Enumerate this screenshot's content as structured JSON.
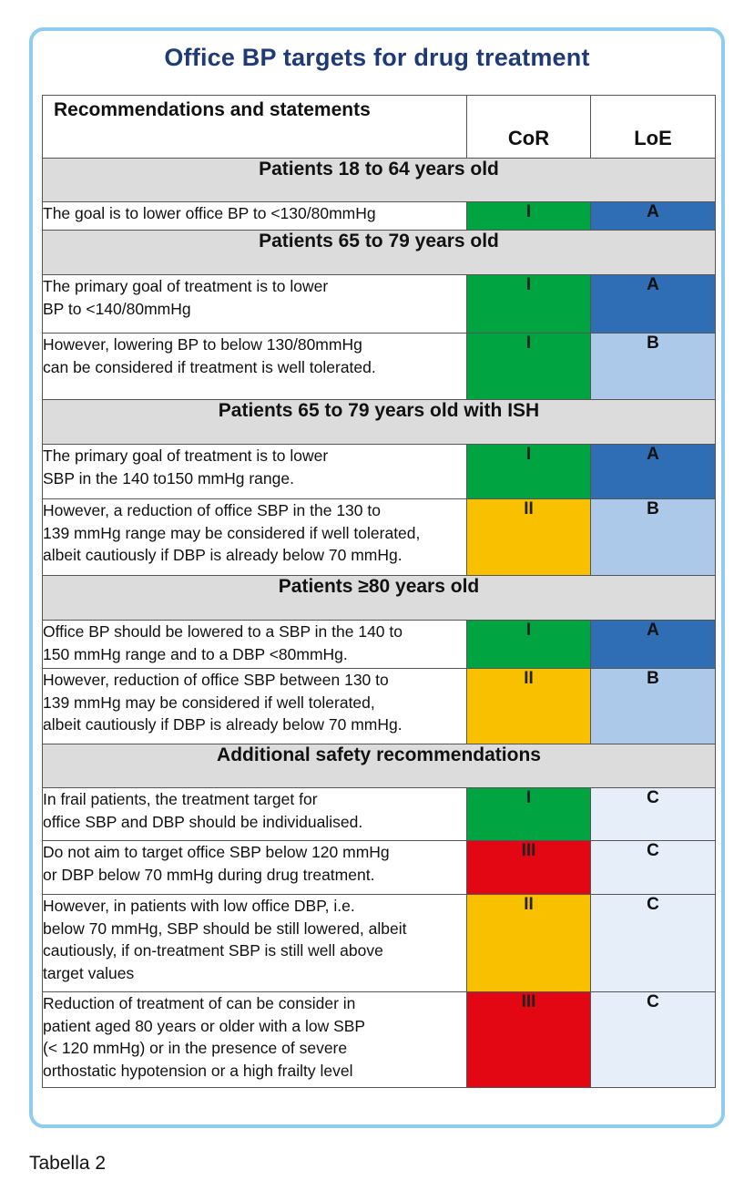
{
  "title": "Office BP targets for drug treatment",
  "header": {
    "statements": "Recommendations and statements",
    "cor": "CoR",
    "loe": "LoE"
  },
  "colors": {
    "cor_I": "#00a440",
    "cor_II": "#f9c000",
    "cor_III": "#e30613",
    "loe_A": "#2f6db5",
    "loe_B": "#adc9ea",
    "loe_C": "#e6eef9",
    "section_bg": "#dcdcdc",
    "frame_border": "#8ecdf0",
    "title_color": "#1f3a78"
  },
  "sections": [
    {
      "title": "Patients 18 to 64 years old",
      "rows": [
        {
          "lines": [
            "The goal is to lower office BP to <130/80mmHg"
          ],
          "cor": "I",
          "loe": "A"
        }
      ]
    },
    {
      "title": "Patients 65 to 79 years old",
      "rows": [
        {
          "lines": [
            "The primary goal of treatment is to lower",
            "BP to <140/80mmHg"
          ],
          "cor": "I",
          "loe": "A"
        },
        {
          "lines": [
            "However, lowering BP to below 130/80mmHg",
            "can be considered if treatment is well tolerated."
          ],
          "cor": "I",
          "loe": "B"
        }
      ]
    },
    {
      "title": "Patients 65 to 79 years old with ISH",
      "rows": [
        {
          "lines": [
            "The primary goal of treatment is to lower",
            "SBP in the 140 to150 mmHg range."
          ],
          "cor": "I",
          "loe": "A"
        },
        {
          "lines": [
            "However, a reduction of office SBP in the 130 to",
            "139 mmHg range may be considered if well tolerated,",
            "albeit cautiously if DBP is already below 70 mmHg."
          ],
          "cor": "II",
          "loe": "B"
        }
      ]
    },
    {
      "title": "Patients ≥80 years old",
      "rows": [
        {
          "lines": [
            "Office BP should be lowered to a SBP in the 140 to",
            "150 mmHg range and to a DBP <80mmHg."
          ],
          "cor": "I",
          "loe": "A"
        },
        {
          "lines": [
            "However, reduction of office SBP between 130 to",
            "139 mmHg may be considered if well tolerated,",
            "albeit cautiously if DBP is already below 70 mmHg."
          ],
          "cor": "II",
          "loe": "B"
        }
      ]
    },
    {
      "title": "Additional safety recommendations",
      "rows": [
        {
          "lines": [
            "In frail patients, the treatment target for",
            "office SBP and DBP should be individualised."
          ],
          "cor": "I",
          "loe": "C"
        },
        {
          "lines": [
            "Do not aim to target office SBP below 120 mmHg",
            "or DBP below 70 mmHg during drug treatment."
          ],
          "cor": "III",
          "loe": "C"
        },
        {
          "lines": [
            "However, in patients with low office DBP, i.e.",
            "below 70 mmHg, SBP should be still lowered, albeit",
            "cautiously, if on-treatment SBP is still well above",
            "target values"
          ],
          "cor": "II",
          "loe": "C"
        },
        {
          "lines": [
            "Reduction of treatment of can be consider in",
            "patient aged 80 years or older with a low SBP",
            "(< 120 mmHg) or in the presence of severe",
            "orthostatic hypotension or a high frailty level"
          ],
          "cor": "III",
          "loe": "C"
        }
      ]
    }
  ],
  "caption": "Tabella 2"
}
